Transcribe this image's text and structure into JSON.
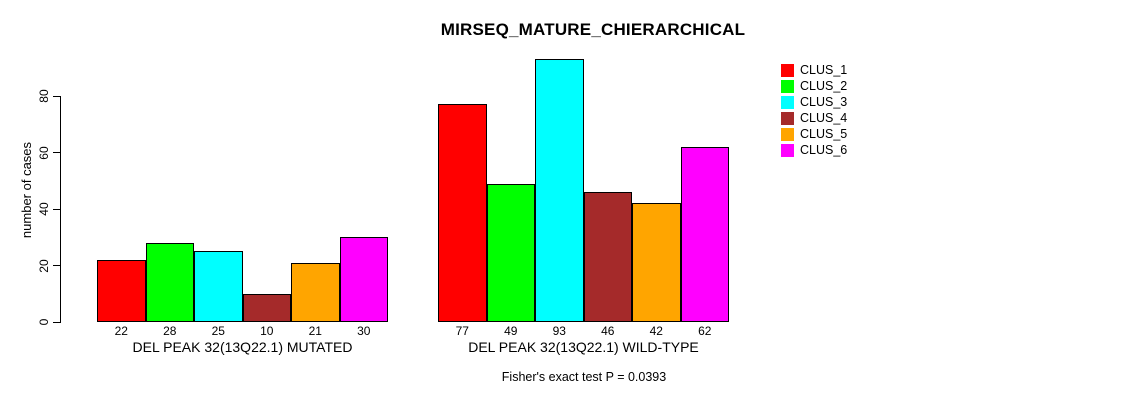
{
  "chart_data": {
    "type": "bar",
    "title": "MIRSEQ_MATURE_CHIERARCHICAL",
    "ylabel": "number of cases",
    "xlabel": "",
    "footnote": "Fisher's exact test P = 0.0393",
    "ylim": [
      0,
      95
    ],
    "yticks": [
      0,
      20,
      40,
      60,
      80
    ],
    "grid": false,
    "legend_position": "right",
    "series_labels": [
      "CLUS_1",
      "CLUS_2",
      "CLUS_3",
      "CLUS_4",
      "CLUS_5",
      "CLUS_6"
    ],
    "series_colors": [
      "#FF0000",
      "#00FF00",
      "#00FFFF",
      "#A52A2A",
      "#FFA500",
      "#FF00FF"
    ],
    "groups": [
      {
        "label": "DEL PEAK 32(13Q22.1) MUTATED",
        "values": [
          22,
          28,
          25,
          10,
          21,
          30
        ]
      },
      {
        "label": "DEL PEAK 32(13Q22.1) WILD-TYPE",
        "values": [
          77,
          49,
          93,
          46,
          42,
          62
        ]
      }
    ],
    "bar_value_labels_shown": true,
    "axis_color": "#000000",
    "background_color": "#FFFFFF"
  }
}
